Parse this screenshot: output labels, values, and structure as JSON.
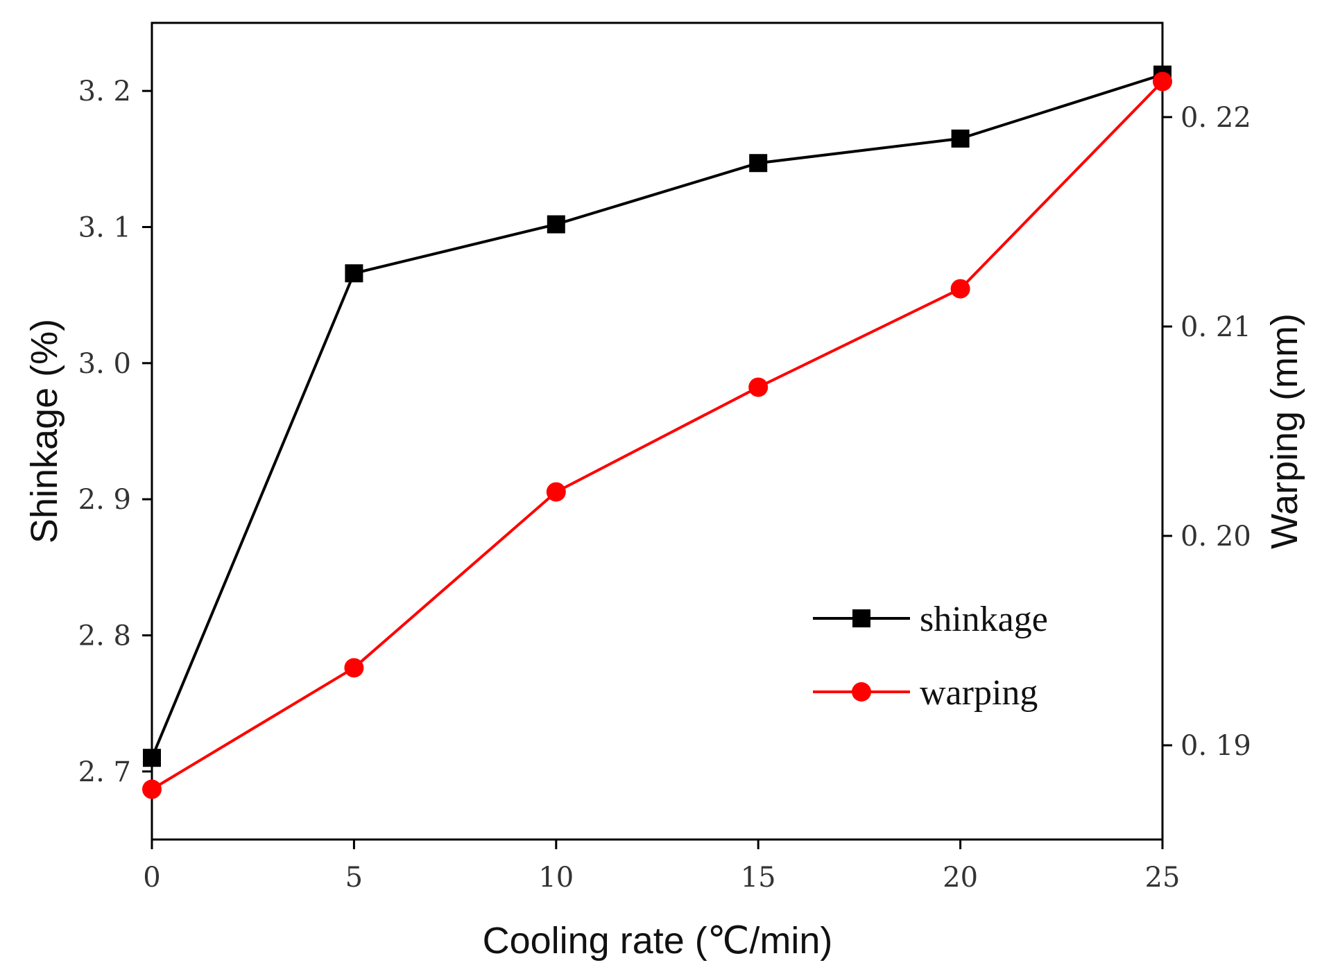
{
  "chart_data": {
    "type": "line",
    "x": [
      0,
      5,
      10,
      15,
      20,
      25
    ],
    "xlabel": "Cooling rate (℃/min)",
    "xlim": [
      0,
      25
    ],
    "xticks": [
      0,
      5,
      10,
      15,
      20,
      25
    ],
    "xtick_labels": [
      "0",
      "5",
      "10",
      "15",
      "20",
      "25"
    ],
    "ylabel_left": "Shinkage (%)",
    "ylim_left": [
      2.65,
      3.25
    ],
    "yticks_left": [
      2.7,
      2.8,
      2.9,
      3.0,
      3.1,
      3.2
    ],
    "ytick_labels_left": [
      "2. 7",
      "2. 8",
      "2. 9",
      "3. 0",
      "3. 1",
      "3. 2"
    ],
    "ylabel_right": "Warping (mm)",
    "ylim_right": [
      0.1855,
      0.2245
    ],
    "yticks_right": [
      0.19,
      0.2,
      0.21,
      0.22
    ],
    "ytick_labels_right": [
      "0. 19",
      "0. 20",
      "0. 21",
      "0. 22"
    ],
    "grid": false,
    "legend_position": "lower-right",
    "series": [
      {
        "name": "shinkage",
        "axis": "left",
        "color": "#000000",
        "marker": "square",
        "values": [
          2.71,
          3.066,
          3.102,
          3.147,
          3.165,
          3.212
        ]
      },
      {
        "name": "warping",
        "axis": "right",
        "color": "#ff0000",
        "marker": "circle",
        "values": [
          0.1879,
          0.1937,
          0.2021,
          0.2071,
          0.2118,
          0.2217
        ]
      }
    ]
  }
}
